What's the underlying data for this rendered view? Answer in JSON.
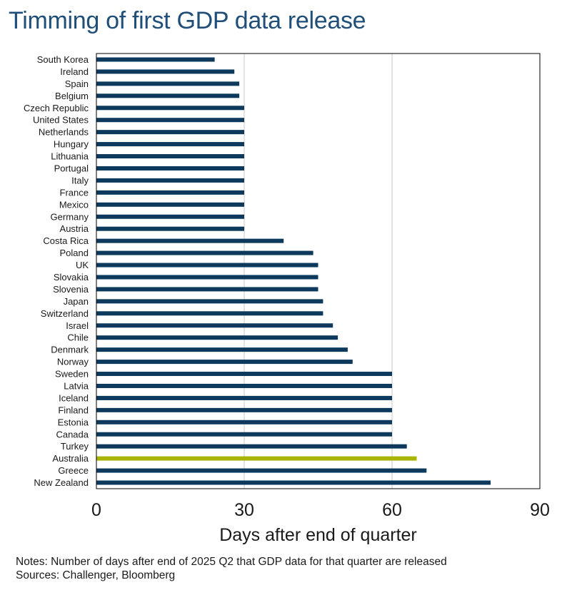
{
  "chart_data": {
    "type": "bar",
    "orientation": "horizontal",
    "title": "Timming of first GDP data release",
    "xlabel": "Days after end of quarter",
    "ylabel": "",
    "xlim": [
      0,
      90
    ],
    "xticks": [
      0,
      30,
      60,
      90
    ],
    "grid": true,
    "categories": [
      "South Korea",
      "Ireland",
      "Spain",
      "Belgium",
      "Czech Republic",
      "United States",
      "Netherlands",
      "Hungary",
      "Lithuania",
      "Portugal",
      "Italy",
      "France",
      "Mexico",
      "Germany",
      "Austria",
      "Costa Rica",
      "Poland",
      "UK",
      "Slovakia",
      "Slovenia",
      "Japan",
      "Switzerland",
      "Israel",
      "Chile",
      "Denmark",
      "Norway",
      "Sweden",
      "Latvia",
      "Iceland",
      "Finland",
      "Estonia",
      "Canada",
      "Turkey",
      "Australia",
      "Greece",
      "New Zealand"
    ],
    "values": [
      24,
      28,
      29,
      29,
      30,
      30,
      30,
      30,
      30,
      30,
      30,
      30,
      30,
      30,
      30,
      38,
      44,
      45,
      45,
      45,
      46,
      46,
      48,
      49,
      51,
      52,
      60,
      60,
      60,
      60,
      60,
      60,
      63,
      65,
      67,
      80
    ],
    "highlight": "Australia",
    "colors": {
      "bar": "#0d3a5c",
      "highlight": "#a8b400",
      "grid": "#c8c8c8",
      "title": "#1f4e79"
    }
  },
  "notes": {
    "line1": "Notes: Number  of days after end of 2025 Q2 that GDP data for that quarter are released",
    "line2": "Sources: Challenger, Bloomberg"
  }
}
